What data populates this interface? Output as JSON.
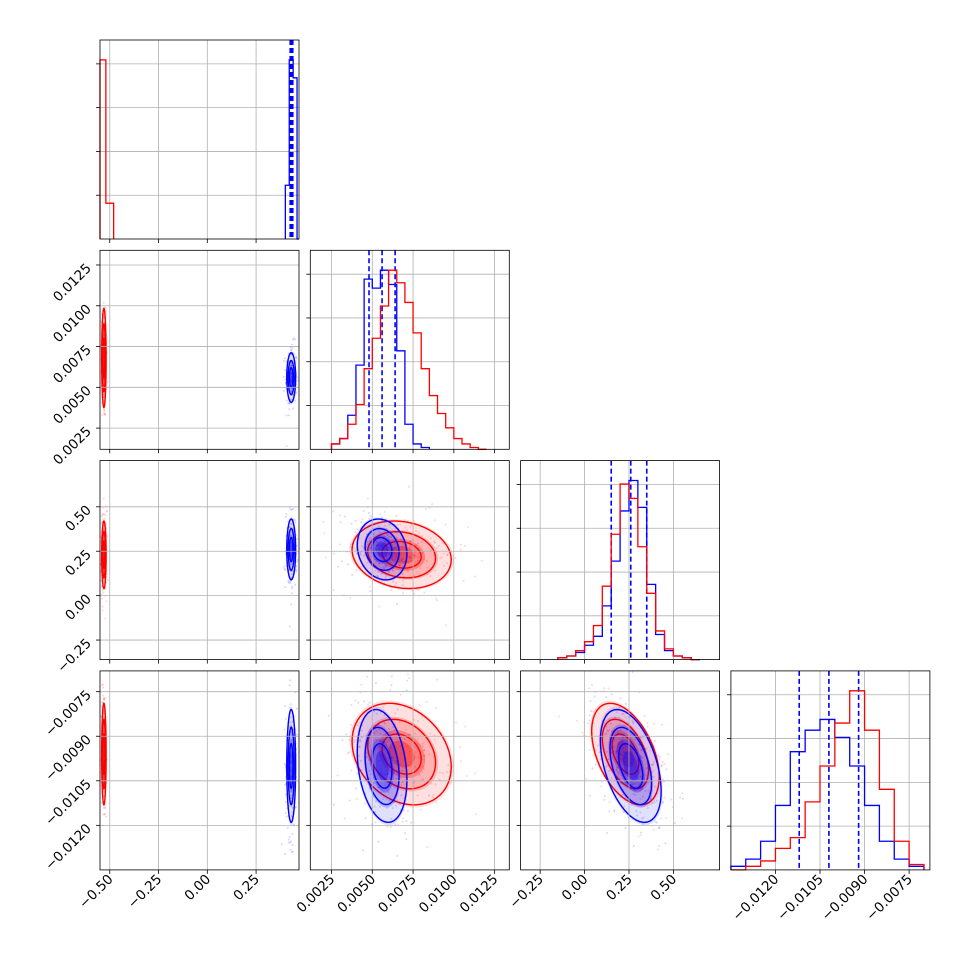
{
  "chart_data": {
    "type": "corner",
    "title": "",
    "colors": {
      "blue": "#0000ff",
      "red": "#ff0000",
      "grid": "#b0b0b0"
    },
    "parameters": [
      {
        "range": [
          -0.55,
          0.47
        ],
        "ticks": [
          -0.5,
          -0.25,
          0.0,
          0.25
        ],
        "tick_labels": [
          "−0.50",
          "−0.25",
          "0.00",
          "0.25"
        ]
      },
      {
        "range": [
          0.0012,
          0.0134
        ],
        "ticks": [
          0.0025,
          0.005,
          0.0075,
          0.01,
          0.0125
        ],
        "tick_labels": [
          "0.0025",
          "0.0050",
          "0.0075",
          "0.0100",
          "0.0125"
        ]
      },
      {
        "range": [
          -0.36,
          0.76
        ],
        "ticks": [
          -0.25,
          0.0,
          0.25,
          0.5
        ],
        "tick_labels": [
          "−0.25",
          "0.00",
          "0.25",
          "0.50"
        ]
      },
      {
        "range": [
          -0.0135,
          -0.0068
        ],
        "ticks": [
          -0.012,
          -0.0105,
          -0.009,
          -0.0075
        ],
        "tick_labels": [
          "−0.0120",
          "−0.0105",
          "−0.0090",
          "−0.0075"
        ]
      }
    ],
    "series": [
      {
        "name": "",
        "color": "#0000ff",
        "marginals": [
          {
            "edges": [
              0.4,
              0.42,
              0.44,
              0.46,
              0.47
            ],
            "counts": [
              0.3,
              1.0,
              0.9,
              0.0
            ],
            "quantiles": [
              0.425,
              0.432,
              0.438
            ]
          },
          {
            "edges": [
              0.0025,
              0.003,
              0.0035,
              0.004,
              0.0045,
              0.005,
              0.0055,
              0.006,
              0.0065,
              0.007,
              0.0075,
              0.008,
              0.0085
            ],
            "counts": [
              0.03,
              0.06,
              0.19,
              0.47,
              0.95,
              0.9,
              1.0,
              0.92,
              0.55,
              0.14,
              0.03,
              0.01
            ],
            "quantiles": [
              0.0048,
              0.0056,
              0.0064
            ]
          },
          {
            "edges": [
              -0.15,
              -0.1,
              -0.05,
              0.0,
              0.05,
              0.1,
              0.15,
              0.2,
              0.25,
              0.3,
              0.35,
              0.4,
              0.45,
              0.5,
              0.55,
              0.6,
              0.65
            ],
            "counts": [
              0.01,
              0.02,
              0.04,
              0.08,
              0.13,
              0.3,
              0.55,
              0.83,
              1.0,
              0.85,
              0.42,
              0.14,
              0.05,
              0.02,
              0.01,
              0.0
            ],
            "quantiles": [
              0.15,
              0.26,
              0.35
            ]
          },
          {
            "edges": [
              -0.0135,
              -0.013,
              -0.0125,
              -0.012,
              -0.0115,
              -0.011,
              -0.0105,
              -0.01,
              -0.0095,
              -0.009,
              -0.0085,
              -0.008,
              -0.0075,
              -0.007
            ],
            "counts": [
              0.02,
              0.06,
              0.16,
              0.36,
              0.66,
              0.78,
              0.84,
              0.74,
              0.58,
              0.36,
              0.16,
              0.06,
              0.02
            ],
            "quantiles": [
              -0.0112,
              -0.0102,
              -0.0092
            ]
          }
        ],
        "means": [
          0.43,
          0.0056,
          0.26,
          -0.01
        ],
        "spreads": [
          0.012,
          0.0008,
          0.09,
          0.001
        ]
      },
      {
        "name": "",
        "color": "#ff0000",
        "marginals": [
          {
            "edges": [
              -0.55,
              -0.52,
              -0.48
            ],
            "counts": [
              1.0,
              0.2
            ],
            "quantiles": []
          },
          {
            "edges": [
              0.0025,
              0.003,
              0.0035,
              0.004,
              0.0045,
              0.005,
              0.0055,
              0.006,
              0.0065,
              0.007,
              0.0075,
              0.008,
              0.0085,
              0.009,
              0.0095,
              0.01,
              0.0105,
              0.011,
              0.0115,
              0.012
            ],
            "counts": [
              0.03,
              0.06,
              0.14,
              0.25,
              0.45,
              0.62,
              0.8,
              1.0,
              0.93,
              0.82,
              0.65,
              0.45,
              0.3,
              0.2,
              0.12,
              0.06,
              0.03,
              0.01,
              0.0
            ],
            "quantiles": []
          },
          {
            "edges": [
              -0.15,
              -0.1,
              -0.05,
              0.0,
              0.05,
              0.1,
              0.15,
              0.2,
              0.25,
              0.3,
              0.35,
              0.4,
              0.45,
              0.5,
              0.55,
              0.6,
              0.65
            ],
            "counts": [
              0.01,
              0.02,
              0.05,
              0.1,
              0.19,
              0.41,
              0.7,
              0.98,
              0.9,
              0.63,
              0.37,
              0.16,
              0.06,
              0.02,
              0.01,
              0.0
            ],
            "quantiles": []
          },
          {
            "edges": [
              -0.0135,
              -0.013,
              -0.0125,
              -0.012,
              -0.0115,
              -0.011,
              -0.0105,
              -0.01,
              -0.0095,
              -0.009,
              -0.0085,
              -0.008,
              -0.0075,
              -0.007
            ],
            "counts": [
              0.0,
              0.02,
              0.05,
              0.12,
              0.18,
              0.38,
              0.58,
              0.82,
              1.0,
              0.78,
              0.45,
              0.16,
              0.03
            ],
            "quantiles": []
          }
        ],
        "means": [
          -0.53,
          0.0068,
          0.23,
          -0.0096
        ],
        "spreads": [
          0.006,
          0.0016,
          0.1,
          0.0009
        ]
      }
    ]
  }
}
